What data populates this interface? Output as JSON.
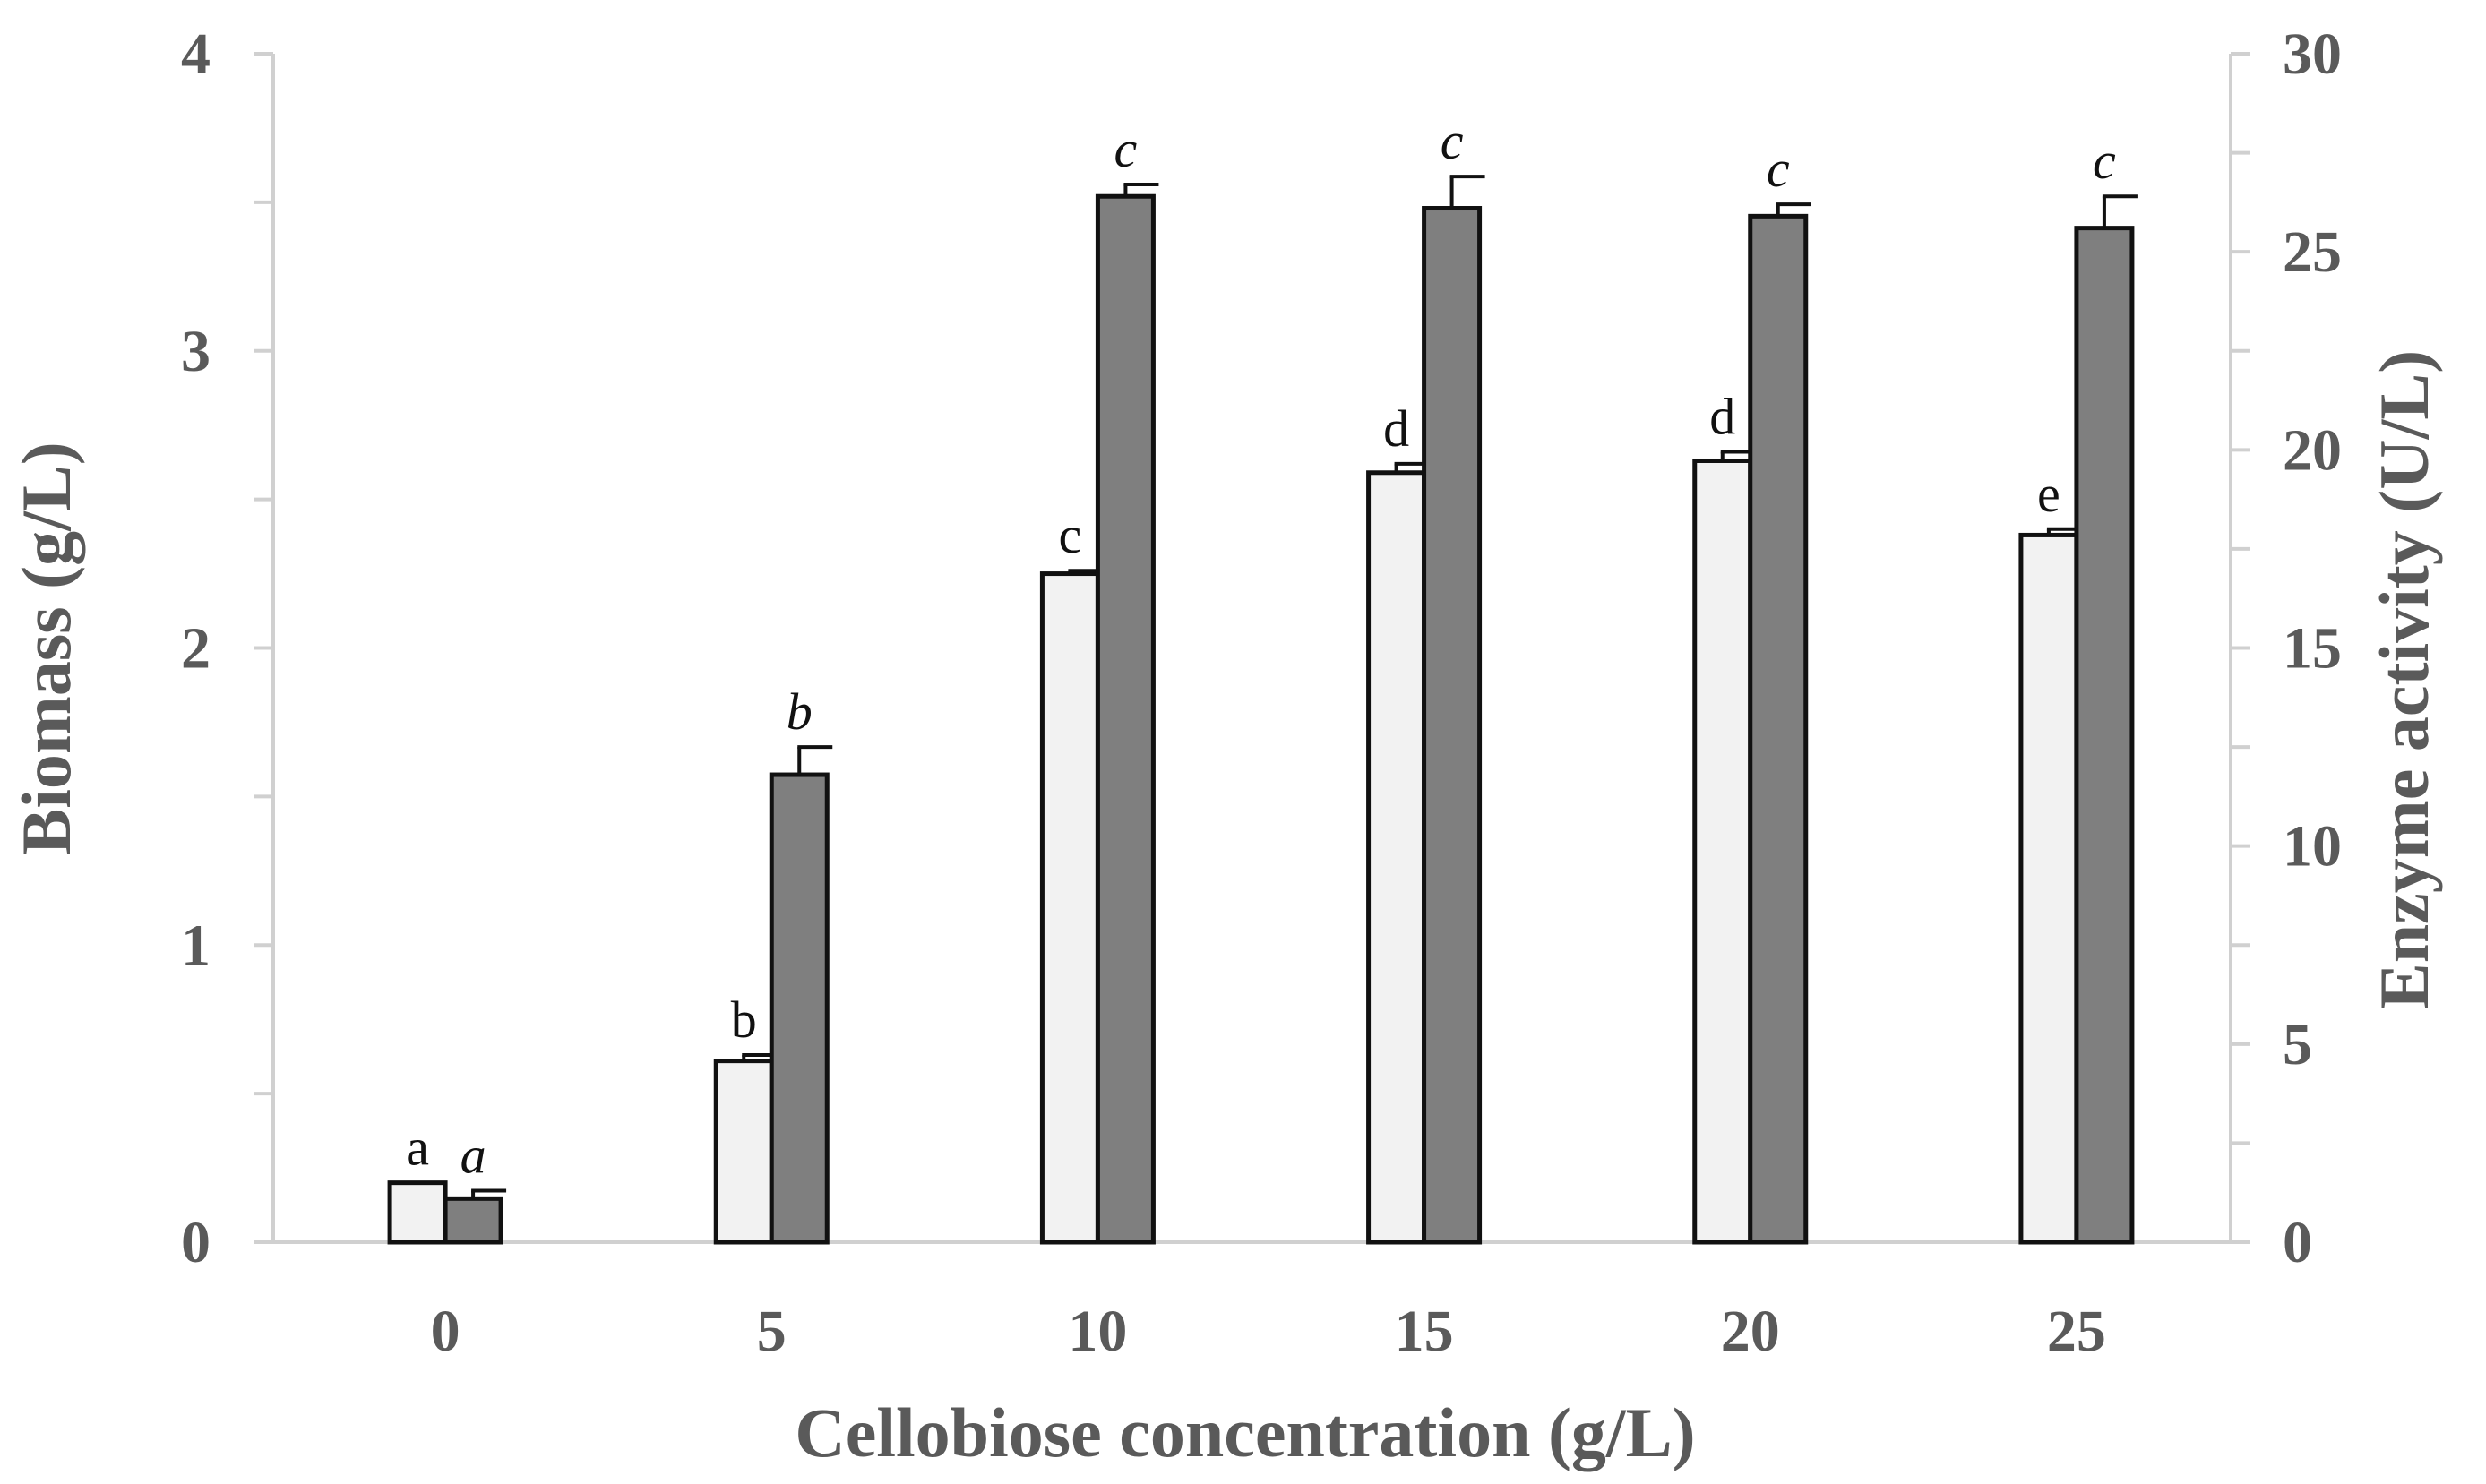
{
  "chart_data": {
    "type": "bar",
    "title": "",
    "xlabel": "Cellobiose concentration (g/L)",
    "ylabel": "Biomass (g/L)",
    "y2label": "Enzyme activity (U/L)",
    "categories": [
      "0",
      "5",
      "10",
      "15",
      "20",
      "25"
    ],
    "ylim": [
      0,
      4
    ],
    "y2lim": [
      0,
      30
    ],
    "yticks": [
      "0",
      "1",
      "2",
      "3",
      "4"
    ],
    "y2ticks": [
      "0",
      "5",
      "10",
      "15",
      "20",
      "25",
      "30"
    ],
    "grid": false,
    "legend": "none",
    "series": [
      {
        "name": "Biomass",
        "axis": "left",
        "color": "#f2f2f2",
        "values": [
          0.2,
          0.61,
          2.25,
          2.59,
          2.63,
          2.38
        ],
        "errors": [
          0.0,
          0.02,
          0.01,
          0.03,
          0.03,
          0.02
        ],
        "labels": [
          "a",
          "b",
          "c",
          "d",
          "d",
          "e"
        ],
        "label_style": "normal"
      },
      {
        "name": "Enzyme activity",
        "axis": "right",
        "color": "#7f7f7f",
        "values": [
          1.1,
          11.8,
          26.4,
          26.1,
          25.9,
          25.6
        ],
        "errors": [
          0.2,
          0.7,
          0.3,
          0.8,
          0.3,
          0.8
        ],
        "labels": [
          "a",
          "b",
          "c",
          "c",
          "c",
          "c"
        ],
        "label_style": "italic"
      }
    ]
  }
}
